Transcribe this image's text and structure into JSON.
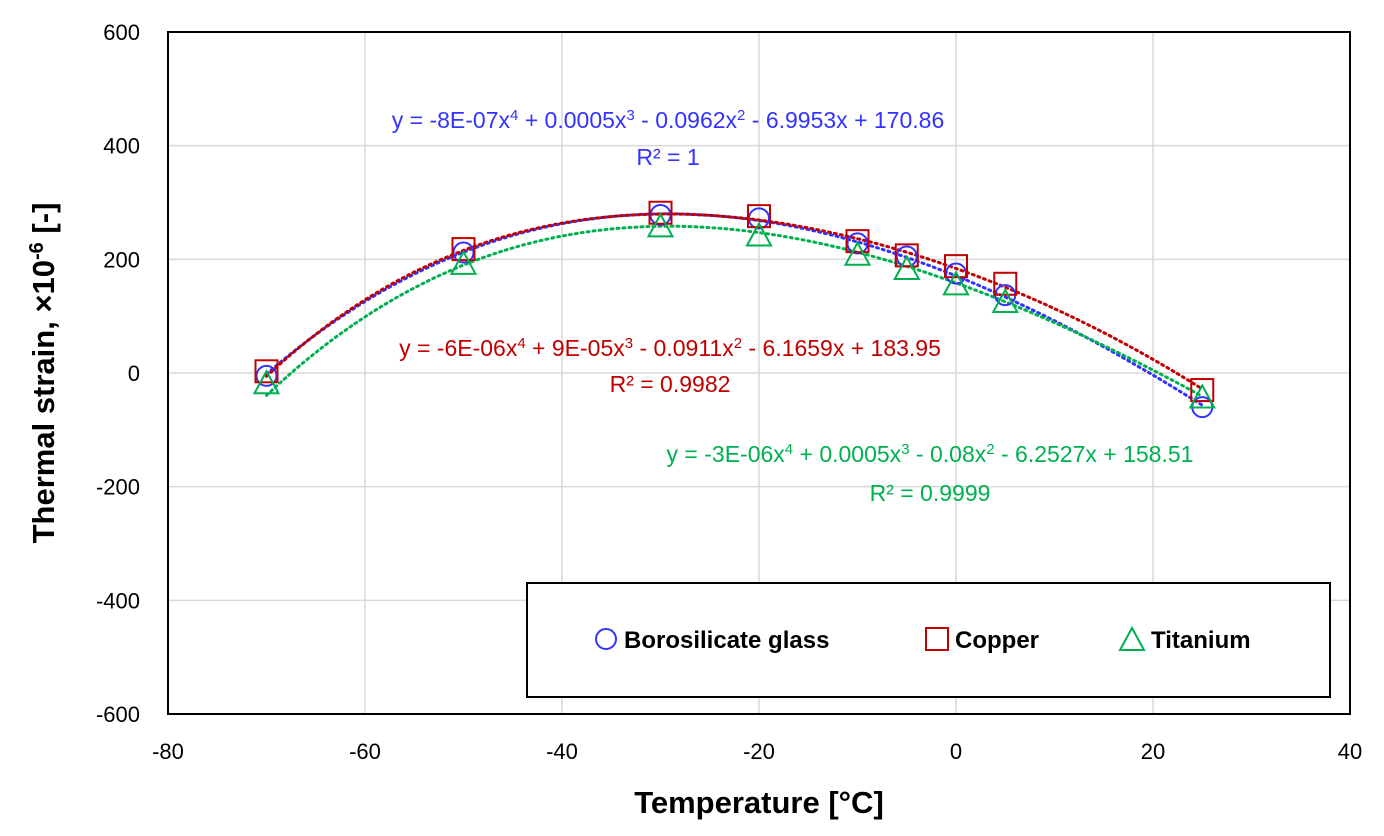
{
  "chart_data": {
    "type": "scatter",
    "xlabel": "Temperature [°C]",
    "ylabel": "Thermal strain,  ×10",
    "ylabel_sup": "-6",
    "ylabel_suffix": " [-]",
    "xlim": [
      -80,
      40
    ],
    "ylim": [
      -600,
      600
    ],
    "x_ticks": [
      -80,
      -60,
      -40,
      -20,
      0,
      20,
      40
    ],
    "y_ticks": [
      -600,
      -400,
      -200,
      0,
      200,
      400,
      600
    ],
    "grid": true,
    "legend_placement": "bottom-right",
    "series": [
      {
        "name": "Borosilicate glass",
        "marker": "circle",
        "color": "#3333ff",
        "x": [
          -70,
          -50,
          -30,
          -20,
          -10,
          -5,
          0,
          5,
          25
        ],
        "y": [
          -5,
          212,
          278,
          272,
          228,
          205,
          175,
          137,
          -60
        ],
        "trendline": {
          "coeffs": [
            170.86,
            -6.9953,
            -0.0962,
            0.0005,
            -8e-07
          ],
          "equation_parts": [
            "y = -8E-07x",
            "4",
            " + 0.0005x",
            "3",
            " - 0.0962x",
            "2",
            " - 6.9953x + 170.86"
          ],
          "r2": "R² = 1"
        }
      },
      {
        "name": "Copper",
        "marker": "square",
        "color": "#c00000",
        "x": [
          -70,
          -50,
          -30,
          -20,
          -10,
          -5,
          0,
          5,
          25
        ],
        "y": [
          3,
          218,
          282,
          276,
          232,
          207,
          188,
          157,
          -30
        ],
        "trendline": {
          "coeffs": [
            183.95,
            -6.1659,
            -0.0911,
            9e-05,
            -6e-06
          ],
          "equation_parts": [
            "y = -6E-06x",
            "4",
            " + 9E-05x",
            "3",
            " - 0.0911x",
            "2",
            " - 6.1659x + 183.95"
          ],
          "r2": "R² = 0.9982"
        }
      },
      {
        "name": "Titanium",
        "marker": "triangle",
        "color": "#00b050",
        "x": [
          -70,
          -50,
          -30,
          -20,
          -10,
          -5,
          0,
          5,
          25
        ],
        "y": [
          -18,
          192,
          258,
          242,
          208,
          183,
          156,
          125,
          -43
        ],
        "trendline": {
          "coeffs": [
            158.51,
            -6.2527,
            -0.08,
            0.0005,
            -3e-06
          ],
          "equation_parts": [
            "y = -3E-06x",
            "4",
            " + 0.0005x",
            "3",
            " - 0.08x",
            "2",
            " - 6.2527x + 158.51"
          ],
          "r2": "R² = 0.9999"
        }
      }
    ]
  }
}
